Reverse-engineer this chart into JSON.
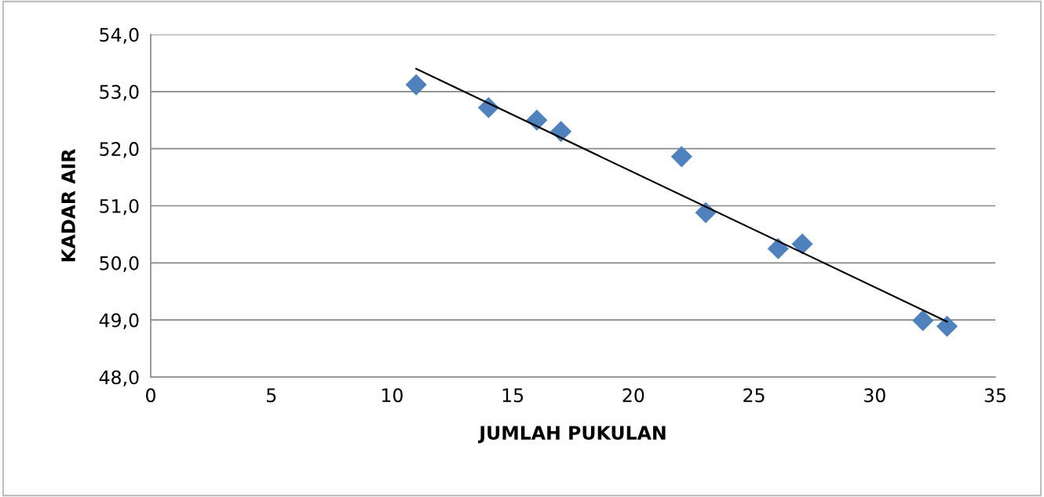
{
  "chart_data": {
    "type": "scatter",
    "xlabel": "JUMLAH PUKULAN",
    "ylabel": "KADAR AIR",
    "series": [
      {
        "color": "#4f81bd",
        "marker": "diamond",
        "x": [
          11,
          14,
          16,
          17,
          22,
          23,
          26,
          27,
          32,
          33
        ],
        "values": [
          53.12,
          52.72,
          52.5,
          52.3,
          51.86,
          50.88,
          50.25,
          50.33,
          48.99,
          48.89
        ]
      },
      {
        "type": "line",
        "color": "#000000",
        "line_style": "solid",
        "marker": "none",
        "x": [
          11,
          33
        ],
        "values": [
          53.4,
          48.97
        ]
      }
    ],
    "xlim": [
      0,
      35
    ],
    "xticks": [
      0,
      5,
      10,
      15,
      20,
      25,
      30,
      35
    ],
    "ylim": [
      48,
      54
    ],
    "yticks": [
      {
        "value": 48,
        "label": "48,0"
      },
      {
        "value": 49,
        "label": "49,0"
      },
      {
        "value": 50,
        "label": "50,0"
      },
      {
        "value": 51,
        "label": "51,0"
      },
      {
        "value": 52,
        "label": "52,0"
      },
      {
        "value": 53,
        "label": "53,0"
      },
      {
        "value": 54,
        "label": "54,0"
      }
    ],
    "grid": "y"
  }
}
